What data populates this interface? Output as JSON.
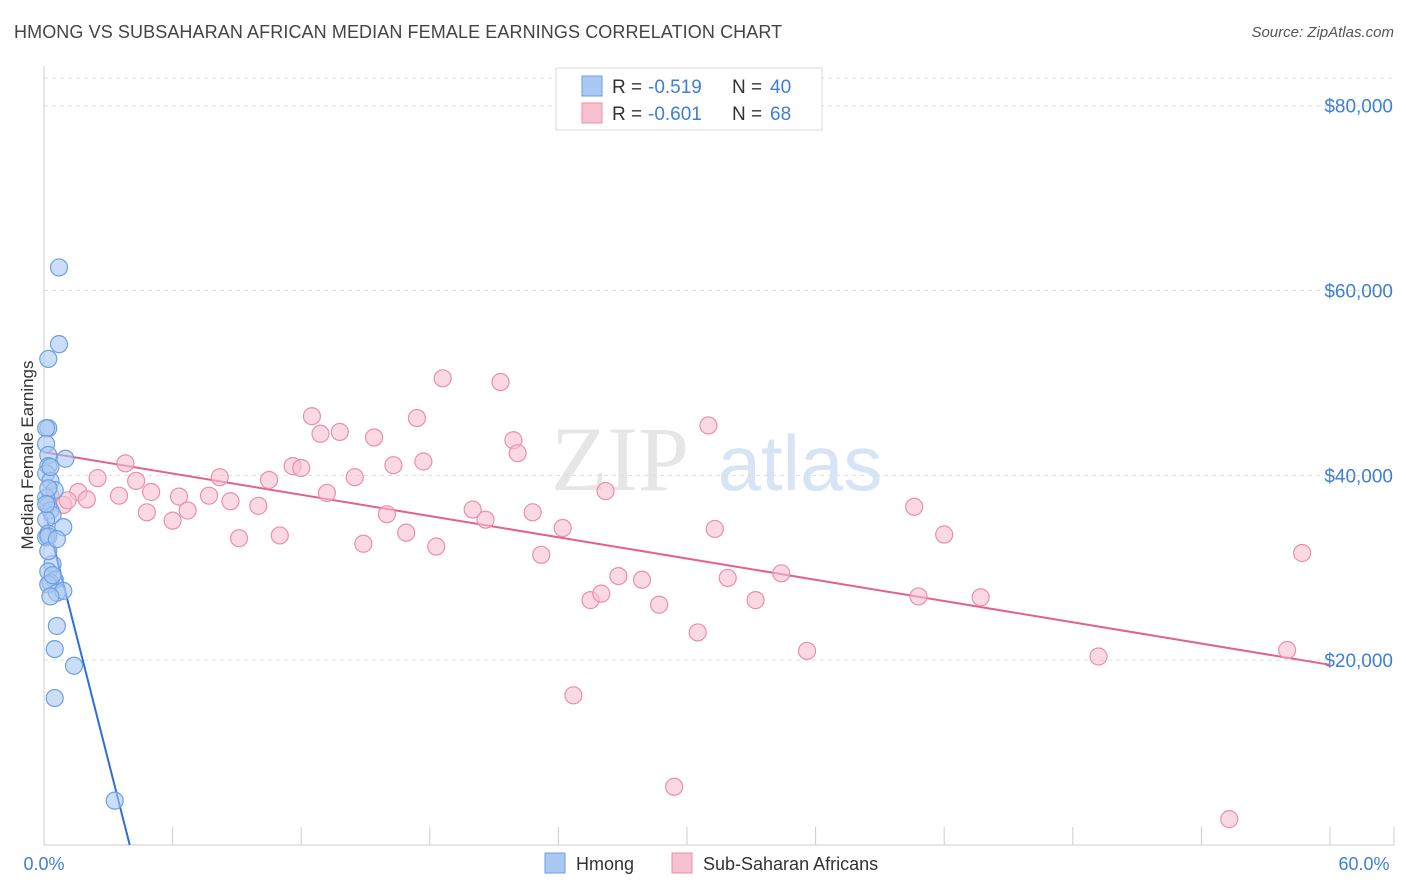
{
  "header": {
    "title": "HMONG VS SUBSAHARAN AFRICAN MEDIAN FEMALE EARNINGS CORRELATION CHART",
    "source": "Source: ZipAtlas.com"
  },
  "watermark": {
    "zip": "ZIP",
    "atlas": "atlas"
  },
  "colors": {
    "blue_fill": "#a9c8f2",
    "blue_stroke": "#6f9fdf",
    "blue_line": "#2e6fd6",
    "pink_fill": "#f7c0d0",
    "pink_stroke": "#ea8fab",
    "pink_line": "#e0628e",
    "tick_text": "#3d7fd6",
    "grid": "#dddddd"
  },
  "legend": {
    "rows": [
      {
        "r_label": "R = ",
        "r_value": "-0.519",
        "n_label": "N = ",
        "n_value": "40"
      },
      {
        "r_label": "R = ",
        "r_value": "-0.601",
        "n_label": "N = ",
        "n_value": "68"
      }
    ]
  },
  "bottom_legend": [
    "Hmong",
    "Sub-Saharan Africans"
  ],
  "chart_data": {
    "type": "scatter",
    "title": "HMONG VS SUBSAHARAN AFRICAN MEDIAN FEMALE EARNINGS CORRELATION CHART",
    "xlabel": "",
    "ylabel": "Median Female Earnings",
    "xlim": [
      0,
      60
    ],
    "ylim": [
      0,
      83000
    ],
    "x_tick_labels": [
      "0.0%",
      "60.0%"
    ],
    "y_ticks": [
      20000,
      40000,
      60000,
      80000
    ],
    "y_tick_labels": [
      "$20,000",
      "$40,000",
      "$60,000",
      "$80,000"
    ],
    "grid": true,
    "series": [
      {
        "name": "Hmong",
        "r": -0.519,
        "n": 40,
        "trend": {
          "x0": 0.0,
          "y0": 36500,
          "x1": 4.0,
          "y1": 0
        },
        "points": [
          [
            0.7,
            62500
          ],
          [
            0.7,
            54200
          ],
          [
            0.2,
            52600
          ],
          [
            0.2,
            45100
          ],
          [
            0.1,
            45100
          ],
          [
            0.1,
            43400
          ],
          [
            0.2,
            42200
          ],
          [
            1.0,
            41800
          ],
          [
            0.2,
            41000
          ],
          [
            0.1,
            40200
          ],
          [
            0.3,
            39400
          ],
          [
            0.5,
            38400
          ],
          [
            0.1,
            37600
          ],
          [
            0.2,
            36800
          ],
          [
            0.3,
            36200
          ],
          [
            0.4,
            35700
          ],
          [
            0.1,
            35200
          ],
          [
            0.2,
            33700
          ],
          [
            0.1,
            33300
          ],
          [
            0.2,
            33400
          ],
          [
            0.9,
            34400
          ],
          [
            0.4,
            30400
          ],
          [
            0.2,
            29600
          ],
          [
            0.5,
            28700
          ],
          [
            0.3,
            28400
          ],
          [
            0.2,
            28200
          ],
          [
            0.6,
            27300
          ],
          [
            0.9,
            27500
          ],
          [
            0.6,
            23700
          ],
          [
            0.5,
            21200
          ],
          [
            1.4,
            19400
          ],
          [
            0.5,
            15900
          ],
          [
            3.3,
            4800
          ],
          [
            0.2,
            38600
          ],
          [
            0.3,
            40900
          ],
          [
            0.1,
            36900
          ],
          [
            0.2,
            31800
          ],
          [
            0.4,
            29200
          ],
          [
            0.3,
            26900
          ],
          [
            0.6,
            33100
          ]
        ]
      },
      {
        "name": "Sub-Saharan Africans",
        "r": -0.601,
        "n": 68,
        "trend": {
          "x0": 0.0,
          "y0": 42500,
          "x1": 60.0,
          "y1": 19500
        },
        "points": [
          [
            0.3,
            37800
          ],
          [
            0.9,
            36800
          ],
          [
            1.6,
            38200
          ],
          [
            2.5,
            39700
          ],
          [
            3.8,
            41300
          ],
          [
            4.3,
            39400
          ],
          [
            5.0,
            38200
          ],
          [
            4.8,
            36000
          ],
          [
            6.3,
            37700
          ],
          [
            6.7,
            36200
          ],
          [
            7.7,
            37800
          ],
          [
            8.2,
            39800
          ],
          [
            8.7,
            37200
          ],
          [
            9.1,
            33200
          ],
          [
            10.0,
            36700
          ],
          [
            10.5,
            39500
          ],
          [
            11.0,
            33500
          ],
          [
            11.6,
            41000
          ],
          [
            12.0,
            40800
          ],
          [
            12.5,
            46400
          ],
          [
            12.9,
            44500
          ],
          [
            13.2,
            38100
          ],
          [
            13.8,
            44700
          ],
          [
            14.5,
            39800
          ],
          [
            14.9,
            32600
          ],
          [
            15.4,
            44100
          ],
          [
            16.0,
            35800
          ],
          [
            16.3,
            41100
          ],
          [
            16.9,
            33800
          ],
          [
            17.4,
            46200
          ],
          [
            17.7,
            41500
          ],
          [
            18.3,
            32300
          ],
          [
            18.6,
            50500
          ],
          [
            20.0,
            36300
          ],
          [
            20.6,
            35200
          ],
          [
            21.3,
            50100
          ],
          [
            21.9,
            43800
          ],
          [
            22.1,
            42400
          ],
          [
            22.8,
            36000
          ],
          [
            23.2,
            31400
          ],
          [
            24.2,
            34300
          ],
          [
            24.7,
            16200
          ],
          [
            25.5,
            26500
          ],
          [
            26.0,
            27200
          ],
          [
            26.2,
            38300
          ],
          [
            26.8,
            29100
          ],
          [
            27.9,
            28700
          ],
          [
            28.7,
            26000
          ],
          [
            29.4,
            6300
          ],
          [
            30.5,
            23000
          ],
          [
            31.0,
            45400
          ],
          [
            31.3,
            34200
          ],
          [
            31.9,
            28900
          ],
          [
            33.2,
            26500
          ],
          [
            34.4,
            29400
          ],
          [
            35.6,
            21000
          ],
          [
            40.8,
            26900
          ],
          [
            40.6,
            36600
          ],
          [
            42.0,
            33600
          ],
          [
            43.7,
            26800
          ],
          [
            49.2,
            20400
          ],
          [
            58.0,
            21100
          ],
          [
            58.7,
            31600
          ],
          [
            55.3,
            2800
          ],
          [
            1.1,
            37300
          ],
          [
            2.0,
            37400
          ],
          [
            3.5,
            37800
          ],
          [
            6.0,
            35100
          ]
        ]
      }
    ]
  }
}
